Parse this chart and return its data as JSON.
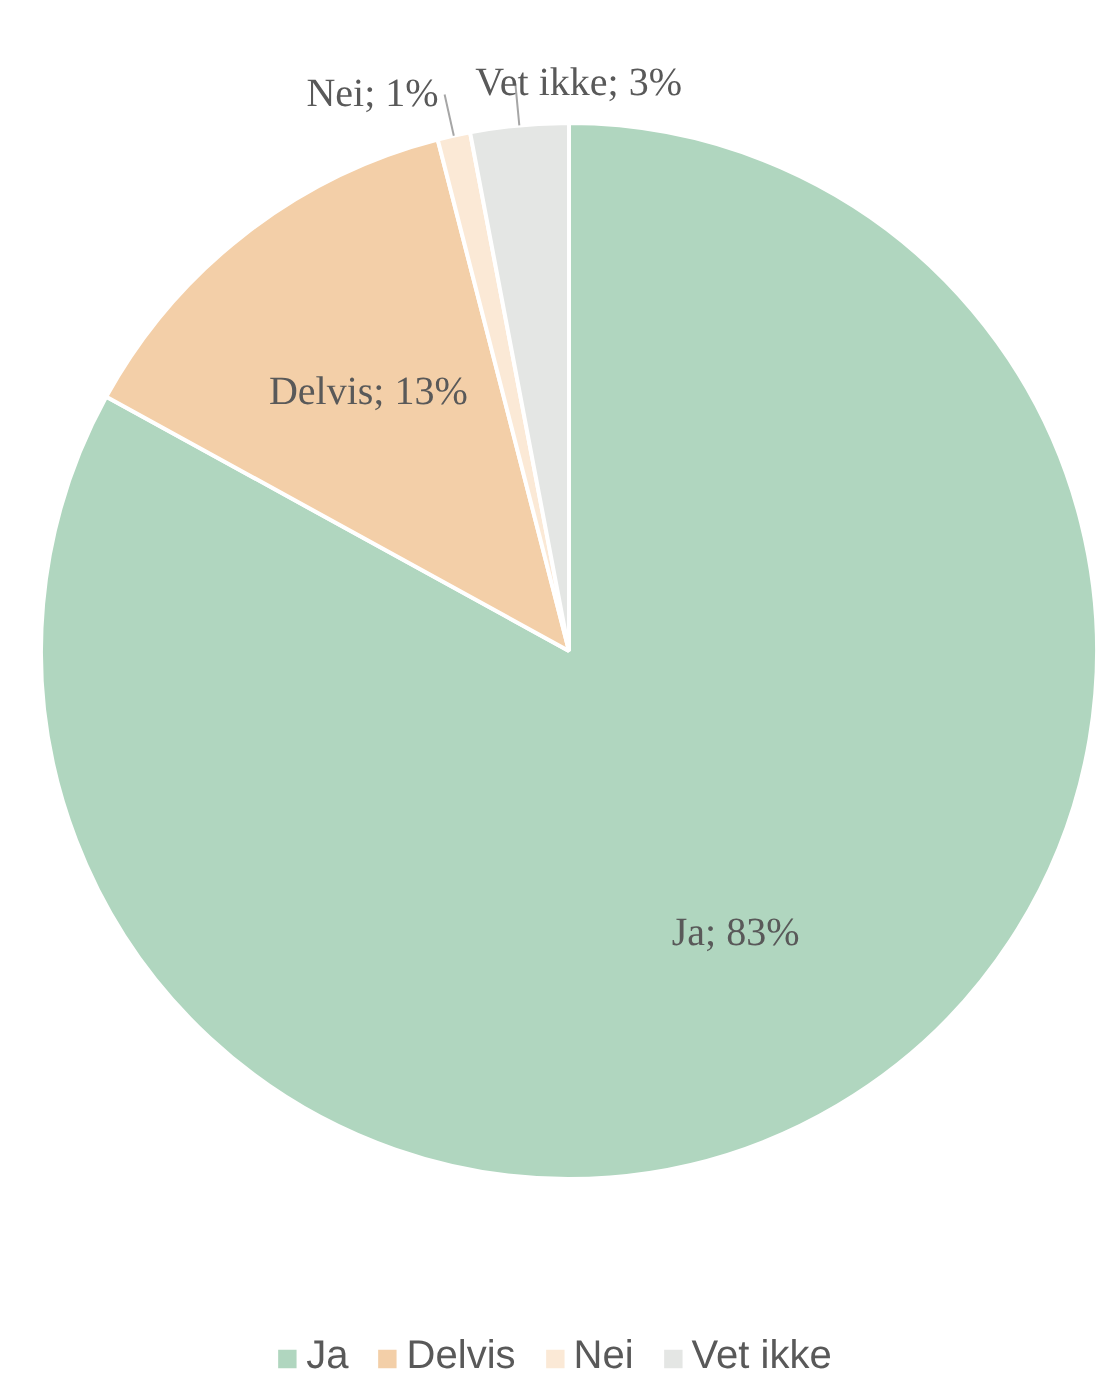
{
  "chart_data": {
    "type": "pie",
    "categories": [
      "Ja",
      "Delvis",
      "Nei",
      "Vet ikke"
    ],
    "values": [
      83,
      13,
      1,
      3
    ],
    "colors": [
      "#b0d6bf",
      "#f3cfa8",
      "#fbe9d6",
      "#e4e6e4"
    ],
    "value_labels": [
      "Ja; 83%",
      "Delvis; 13%",
      "Nei; 1%",
      "Vet ikke; 3%"
    ],
    "legend": "bottom"
  }
}
